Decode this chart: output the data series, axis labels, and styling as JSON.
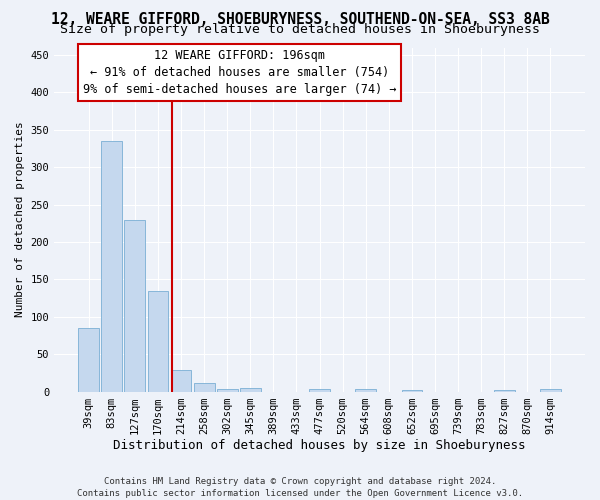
{
  "title": "12, WEARE GIFFORD, SHOEBURYNESS, SOUTHEND-ON-SEA, SS3 8AB",
  "subtitle": "Size of property relative to detached houses in Shoeburyness",
  "xlabel": "Distribution of detached houses by size in Shoeburyness",
  "ylabel": "Number of detached properties",
  "footer1": "Contains HM Land Registry data © Crown copyright and database right 2024.",
  "footer2": "Contains public sector information licensed under the Open Government Licence v3.0.",
  "categories": [
    "39sqm",
    "83sqm",
    "127sqm",
    "170sqm",
    "214sqm",
    "258sqm",
    "302sqm",
    "345sqm",
    "389sqm",
    "433sqm",
    "477sqm",
    "520sqm",
    "564sqm",
    "608sqm",
    "652sqm",
    "695sqm",
    "739sqm",
    "783sqm",
    "827sqm",
    "870sqm",
    "914sqm"
  ],
  "values": [
    85,
    335,
    230,
    135,
    29,
    11,
    3,
    5,
    0,
    0,
    3,
    0,
    4,
    0,
    2,
    0,
    0,
    0,
    2,
    0,
    4
  ],
  "bar_color": "#c5d8ee",
  "bar_edge_color": "#7aafd4",
  "annotation_label": "12 WEARE GIFFORD: 196sqm",
  "annotation_line1": "← 91% of detached houses are smaller (754)",
  "annotation_line2": "9% of semi-detached houses are larger (74) →",
  "annotation_box_color": "#cc0000",
  "background_color": "#eef2f9",
  "grid_color": "#ffffff",
  "ylim": [
    0,
    460
  ],
  "yticks": [
    0,
    50,
    100,
    150,
    200,
    250,
    300,
    350,
    400,
    450
  ],
  "title_fontsize": 10.5,
  "subtitle_fontsize": 9.5,
  "xlabel_fontsize": 9,
  "ylabel_fontsize": 8,
  "tick_fontsize": 7.5,
  "annotation_fontsize": 8.5,
  "footer_fontsize": 6.5
}
